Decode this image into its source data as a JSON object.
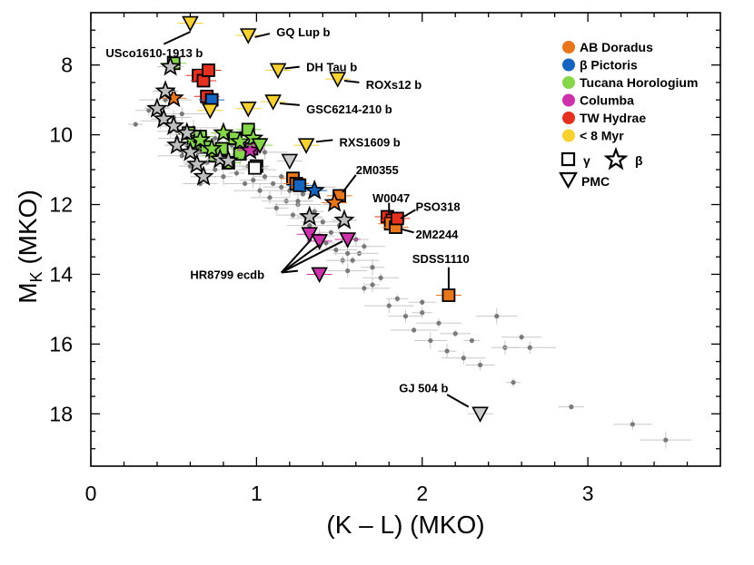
{
  "chart_data": {
    "type": "scatter",
    "xlabel": "(K – L) (MKO)",
    "ylabel": "M",
    "ylabel_sub": "K",
    "ylabel_suffix": " (MKO)",
    "xlim": [
      0,
      3.8
    ],
    "ylim": [
      19.5,
      6.5
    ],
    "y_inverted": true,
    "x_ticks": [
      0,
      1,
      2,
      3
    ],
    "y_ticks": [
      8,
      10,
      12,
      14,
      16,
      18
    ],
    "legend": {
      "groups": [
        {
          "label": "AB Doradus",
          "color": "#e8761c"
        },
        {
          "label": "β Pictoris",
          "color": "#1565c0"
        },
        {
          "label": "Tucana Horologium",
          "color": "#86d64a"
        },
        {
          "label": "Columba",
          "color": "#cc33aa"
        },
        {
          "label": "TW Hydrae",
          "color": "#e53020"
        },
        {
          "label": "< 8 Myr",
          "color": "#f7d130"
        }
      ],
      "symbols": [
        {
          "label": "γ",
          "symbol": "square"
        },
        {
          "label": "β",
          "symbol": "star"
        },
        {
          "label": "PMC",
          "symbol": "triangle"
        }
      ]
    },
    "field_objects": [
      [
        0.27,
        9.7
      ],
      [
        0.35,
        9.3
      ],
      [
        0.42,
        9.6
      ],
      [
        0.45,
        9.0
      ],
      [
        0.48,
        9.9
      ],
      [
        0.52,
        10.1
      ],
      [
        0.55,
        9.4
      ],
      [
        0.58,
        10.3
      ],
      [
        0.6,
        10.0
      ],
      [
        0.62,
        9.8
      ],
      [
        0.65,
        10.5
      ],
      [
        0.68,
        10.2
      ],
      [
        0.7,
        10.8
      ],
      [
        0.72,
        10.4
      ],
      [
        0.75,
        11.0
      ],
      [
        0.78,
        10.6
      ],
      [
        0.8,
        11.2
      ],
      [
        0.83,
        10.9
      ],
      [
        0.85,
        10.3
      ],
      [
        0.88,
        11.1
      ],
      [
        0.9,
        10.7
      ],
      [
        0.93,
        11.4
      ],
      [
        0.95,
        10.9
      ],
      [
        0.98,
        11.3
      ],
      [
        1.0,
        11.0
      ],
      [
        1.02,
        11.6
      ],
      [
        1.05,
        11.2
      ],
      [
        1.08,
        11.8
      ],
      [
        1.1,
        11.4
      ],
      [
        1.12,
        12.1
      ],
      [
        1.15,
        11.5
      ],
      [
        1.18,
        11.9
      ],
      [
        1.2,
        11.6
      ],
      [
        1.22,
        12.3
      ],
      [
        1.25,
        12.0
      ],
      [
        1.28,
        11.7
      ],
      [
        1.3,
        12.4
      ],
      [
        1.32,
        12.6
      ],
      [
        1.35,
        12.2
      ],
      [
        1.38,
        12.9
      ],
      [
        1.4,
        12.5
      ],
      [
        1.42,
        13.1
      ],
      [
        1.45,
        12.8
      ],
      [
        1.48,
        13.3
      ],
      [
        1.5,
        12.6
      ],
      [
        1.52,
        13.6
      ],
      [
        1.55,
        13.9
      ],
      [
        1.58,
        13.6
      ],
      [
        1.6,
        13.0
      ],
      [
        1.62,
        13.4
      ],
      [
        1.65,
        14.4
      ],
      [
        1.7,
        13.8
      ],
      [
        1.75,
        14.1
      ],
      [
        1.8,
        14.9
      ],
      [
        1.85,
        14.7
      ],
      [
        1.9,
        15.2
      ],
      [
        1.95,
        15.6
      ],
      [
        2.0,
        15.1
      ],
      [
        2.05,
        15.9
      ],
      [
        2.1,
        15.4
      ],
      [
        2.15,
        16.2
      ],
      [
        2.2,
        15.7
      ],
      [
        2.25,
        16.4
      ],
      [
        2.3,
        15.9
      ],
      [
        2.35,
        16.6
      ],
      [
        2.45,
        15.2
      ],
      [
        2.55,
        17.1
      ],
      [
        2.5,
        16.1
      ],
      [
        2.6,
        15.8
      ],
      [
        2.65,
        16.1
      ],
      [
        2.9,
        17.8
      ],
      [
        3.27,
        18.3
      ],
      [
        3.47,
        18.75
      ],
      [
        0.4,
        9.2
      ],
      [
        0.5,
        9.5
      ],
      [
        0.55,
        10.6
      ],
      [
        0.6,
        10.9
      ],
      [
        0.66,
        11.4
      ],
      [
        0.75,
        10.1
      ],
      [
        0.82,
        10.4
      ],
      [
        0.9,
        10.0
      ],
      [
        1.05,
        10.5
      ],
      [
        1.15,
        11.2
      ],
      [
        1.25,
        11.9
      ],
      [
        1.35,
        11.5
      ],
      [
        1.45,
        12.0
      ],
      [
        1.55,
        13.4
      ],
      [
        1.65,
        13.2
      ],
      [
        1.7,
        14.3
      ],
      [
        2.0,
        14.8
      ]
    ],
    "young_objects": [
      {
        "symbol": "square",
        "color": "#86d64a",
        "x": 0.5,
        "y": 7.95
      },
      {
        "symbol": "square",
        "color": "#e53020",
        "x": 0.65,
        "y": 8.3
      },
      {
        "symbol": "square",
        "color": "#e53020",
        "x": 0.68,
        "y": 8.45
      },
      {
        "symbol": "square",
        "color": "#e53020",
        "x": 0.71,
        "y": 8.15
      },
      {
        "symbol": "square",
        "color": "#e53020",
        "x": 0.7,
        "y": 8.9
      },
      {
        "symbol": "square",
        "color": "#1565c0",
        "x": 0.73,
        "y": 9.0
      },
      {
        "symbol": "square",
        "color": "#86d64a",
        "x": 0.59,
        "y": 9.95
      },
      {
        "symbol": "square",
        "color": "#86d64a",
        "x": 0.62,
        "y": 10.2
      },
      {
        "symbol": "square",
        "color": "#86d64a",
        "x": 0.66,
        "y": 10.05
      },
      {
        "symbol": "square",
        "color": "#86d64a",
        "x": 0.7,
        "y": 10.35
      },
      {
        "symbol": "square",
        "color": "#86d64a",
        "x": 0.75,
        "y": 10.6
      },
      {
        "symbol": "square",
        "color": "#86d64a",
        "x": 0.79,
        "y": 10.4
      },
      {
        "symbol": "square",
        "color": "#86d64a",
        "x": 0.83,
        "y": 10.8
      },
      {
        "symbol": "square",
        "color": "#86d64a",
        "x": 0.87,
        "y": 10.1
      },
      {
        "symbol": "square",
        "color": "#86d64a",
        "x": 0.9,
        "y": 10.55
      },
      {
        "symbol": "square",
        "color": "#86d64a",
        "x": 0.95,
        "y": 9.85
      },
      {
        "symbol": "square",
        "color": "#cc33aa",
        "x": 0.97,
        "y": 10.4
      },
      {
        "symbol": "square",
        "color": "#ffffff",
        "x": 1.0,
        "y": 10.9
      },
      {
        "symbol": "square",
        "color": "#ffffff",
        "x": 0.99,
        "y": 10.95
      },
      {
        "symbol": "square",
        "color": "#e8761c",
        "x": 1.22,
        "y": 11.25
      },
      {
        "symbol": "square",
        "color": "#e8761c",
        "x": 1.24,
        "y": 11.4
      },
      {
        "symbol": "square",
        "color": "#1565c0",
        "x": 1.26,
        "y": 11.45
      },
      {
        "symbol": "square",
        "color": "#e8761c",
        "x": 1.5,
        "y": 11.75
      },
      {
        "symbol": "square",
        "color": "#e53020",
        "x": 1.79,
        "y": 12.35
      },
      {
        "symbol": "square",
        "color": "#e53020",
        "x": 1.82,
        "y": 12.45
      },
      {
        "symbol": "square",
        "color": "#e8761c",
        "x": 1.81,
        "y": 12.55
      },
      {
        "symbol": "square",
        "color": "#e8761c",
        "x": 1.84,
        "y": 12.65
      },
      {
        "symbol": "square",
        "color": "#e53020",
        "x": 1.85,
        "y": 12.4
      },
      {
        "symbol": "square",
        "color": "#e8761c",
        "x": 2.16,
        "y": 14.6
      },
      {
        "symbol": "star",
        "color": "#ffffff",
        "x": 0.48,
        "y": 8.05
      },
      {
        "symbol": "star",
        "color": "#e8761c",
        "x": 0.5,
        "y": 8.95
      },
      {
        "symbol": "star",
        "color": "#ffffff",
        "x": 0.45,
        "y": 8.75
      },
      {
        "symbol": "star",
        "color": "#ffffff",
        "x": 0.4,
        "y": 9.25
      },
      {
        "symbol": "star",
        "color": "#ffffff",
        "x": 0.44,
        "y": 9.55
      },
      {
        "symbol": "star",
        "color": "#ffffff",
        "x": 0.5,
        "y": 9.75
      },
      {
        "symbol": "star",
        "color": "#ffffff",
        "x": 0.58,
        "y": 9.95
      },
      {
        "symbol": "star",
        "color": "#ffffff",
        "x": 0.52,
        "y": 10.3
      },
      {
        "symbol": "star",
        "color": "#ffffff",
        "x": 0.6,
        "y": 10.5
      },
      {
        "symbol": "star",
        "color": "#86d64a",
        "x": 0.66,
        "y": 10.15
      },
      {
        "symbol": "star",
        "color": "#ffffff",
        "x": 0.64,
        "y": 10.85
      },
      {
        "symbol": "star",
        "color": "#ffffff",
        "x": 0.68,
        "y": 11.2
      },
      {
        "symbol": "star",
        "color": "#86d64a",
        "x": 0.73,
        "y": 10.4
      },
      {
        "symbol": "star",
        "color": "#ffffff",
        "x": 0.78,
        "y": 10.7
      },
      {
        "symbol": "star",
        "color": "#86d64a",
        "x": 0.8,
        "y": 9.95
      },
      {
        "symbol": "star",
        "color": "#ffffff",
        "x": 0.83,
        "y": 10.75
      },
      {
        "symbol": "star",
        "color": "#86d64a",
        "x": 0.9,
        "y": 10.2
      },
      {
        "symbol": "star",
        "color": "#cc33aa",
        "x": 0.96,
        "y": 10.45
      },
      {
        "symbol": "star",
        "color": "#86d64a",
        "x": 0.98,
        "y": 10.1
      },
      {
        "symbol": "star",
        "color": "#1565c0",
        "x": 1.35,
        "y": 11.6
      },
      {
        "symbol": "star",
        "color": "#e8761c",
        "x": 1.47,
        "y": 11.95
      },
      {
        "symbol": "star",
        "color": "#ffffff",
        "x": 1.32,
        "y": 12.35
      },
      {
        "symbol": "star",
        "color": "#ffffff",
        "x": 1.53,
        "y": 12.45
      },
      {
        "symbol": "triangle",
        "color": "#f7d130",
        "x": 0.6,
        "y": 6.8
      },
      {
        "symbol": "triangle",
        "color": "#f7d130",
        "x": 0.95,
        "y": 7.15
      },
      {
        "symbol": "triangle",
        "color": "#f7d130",
        "x": 1.13,
        "y": 8.15
      },
      {
        "symbol": "triangle",
        "color": "#f7d130",
        "x": 1.49,
        "y": 8.4
      },
      {
        "symbol": "triangle",
        "color": "#f7d130",
        "x": 0.72,
        "y": 9.3
      },
      {
        "symbol": "triangle",
        "color": "#f7d130",
        "x": 0.95,
        "y": 9.25
      },
      {
        "symbol": "triangle",
        "color": "#f7d130",
        "x": 1.1,
        "y": 9.05
      },
      {
        "symbol": "triangle",
        "color": "#f7d130",
        "x": 1.3,
        "y": 10.3
      },
      {
        "symbol": "triangle",
        "color": "#86d64a",
        "x": 1.02,
        "y": 10.3
      },
      {
        "symbol": "triangle",
        "color": "#cccccc",
        "x": 1.2,
        "y": 10.75
      },
      {
        "symbol": "triangle",
        "color": "#cc33aa",
        "x": 1.32,
        "y": 12.85
      },
      {
        "symbol": "triangle",
        "color": "#cc33aa",
        "x": 1.38,
        "y": 13.05
      },
      {
        "symbol": "triangle",
        "color": "#cc33aa",
        "x": 1.55,
        "y": 13.0
      },
      {
        "symbol": "triangle",
        "color": "#cc33aa",
        "x": 1.38,
        "y": 14.0
      },
      {
        "symbol": "triangle",
        "color": "#cccccc",
        "x": 2.35,
        "y": 18.0
      }
    ],
    "annotations": [
      {
        "text": "USco1610-1913 b",
        "x": 0.09,
        "y": 7.65,
        "line": [
          [
            0.44,
            7.4
          ],
          [
            0.6,
            7.05
          ]
        ]
      },
      {
        "text": "GQ Lup b",
        "x": 1.12,
        "y": 7.05,
        "line": [
          [
            0.99,
            7.2
          ],
          [
            1.08,
            7.1
          ]
        ]
      },
      {
        "text": "DH Tau b",
        "x": 1.3,
        "y": 8.05,
        "line": [
          [
            1.17,
            8.1
          ],
          [
            1.26,
            8.05
          ]
        ]
      },
      {
        "text": "ROXs12 b",
        "x": 1.66,
        "y": 8.55,
        "line": [
          [
            1.53,
            8.45
          ],
          [
            1.62,
            8.5
          ]
        ]
      },
      {
        "text": "GSC6214-210 b",
        "x": 1.3,
        "y": 9.25,
        "line": [
          [
            1.14,
            9.1
          ],
          [
            1.26,
            9.15
          ]
        ]
      },
      {
        "text": "RXS1609 b",
        "x": 1.5,
        "y": 10.2,
        "line": [
          [
            1.36,
            10.2
          ],
          [
            1.46,
            10.15
          ]
        ]
      },
      {
        "text": "2M0355",
        "x": 1.6,
        "y": 11.0,
        "line": [
          [
            1.52,
            11.65
          ],
          [
            1.6,
            11.15
          ]
        ]
      },
      {
        "text": "W0047",
        "x": 1.7,
        "y": 11.8,
        "line": [
          [
            1.8,
            12.25
          ],
          [
            1.8,
            11.95
          ]
        ]
      },
      {
        "text": "PSO318",
        "x": 1.96,
        "y": 12.05,
        "line": [
          [
            1.87,
            12.4
          ],
          [
            1.96,
            12.15
          ]
        ]
      },
      {
        "text": "2M2244",
        "x": 1.96,
        "y": 12.85,
        "line": [
          [
            1.87,
            12.7
          ],
          [
            1.95,
            12.8
          ]
        ]
      },
      {
        "text": "SDSS1110",
        "x": 1.94,
        "y": 13.55,
        "line": [
          [
            2.16,
            14.45
          ],
          [
            2.16,
            13.8
          ]
        ]
      },
      {
        "text": "HR8799 ecdb",
        "x": 0.6,
        "y": 14.0,
        "line": [
          [
            1.15,
            13.95
          ],
          [
            1.33,
            13.0
          ]
        ]
      },
      {
        "text": "GJ 504 b",
        "x": 1.86,
        "y": 17.25,
        "line": [
          [
            2.28,
            17.8
          ],
          [
            2.15,
            17.45
          ]
        ]
      }
    ],
    "annotation_extra_lines": [
      [
        [
          1.15,
          13.95
        ],
        [
          1.38,
          13.15
        ]
      ],
      [
        [
          1.15,
          13.95
        ],
        [
          1.52,
          13.05
        ]
      ],
      [
        [
          1.15,
          13.95
        ],
        [
          1.25,
          13.9
        ]
      ]
    ]
  }
}
